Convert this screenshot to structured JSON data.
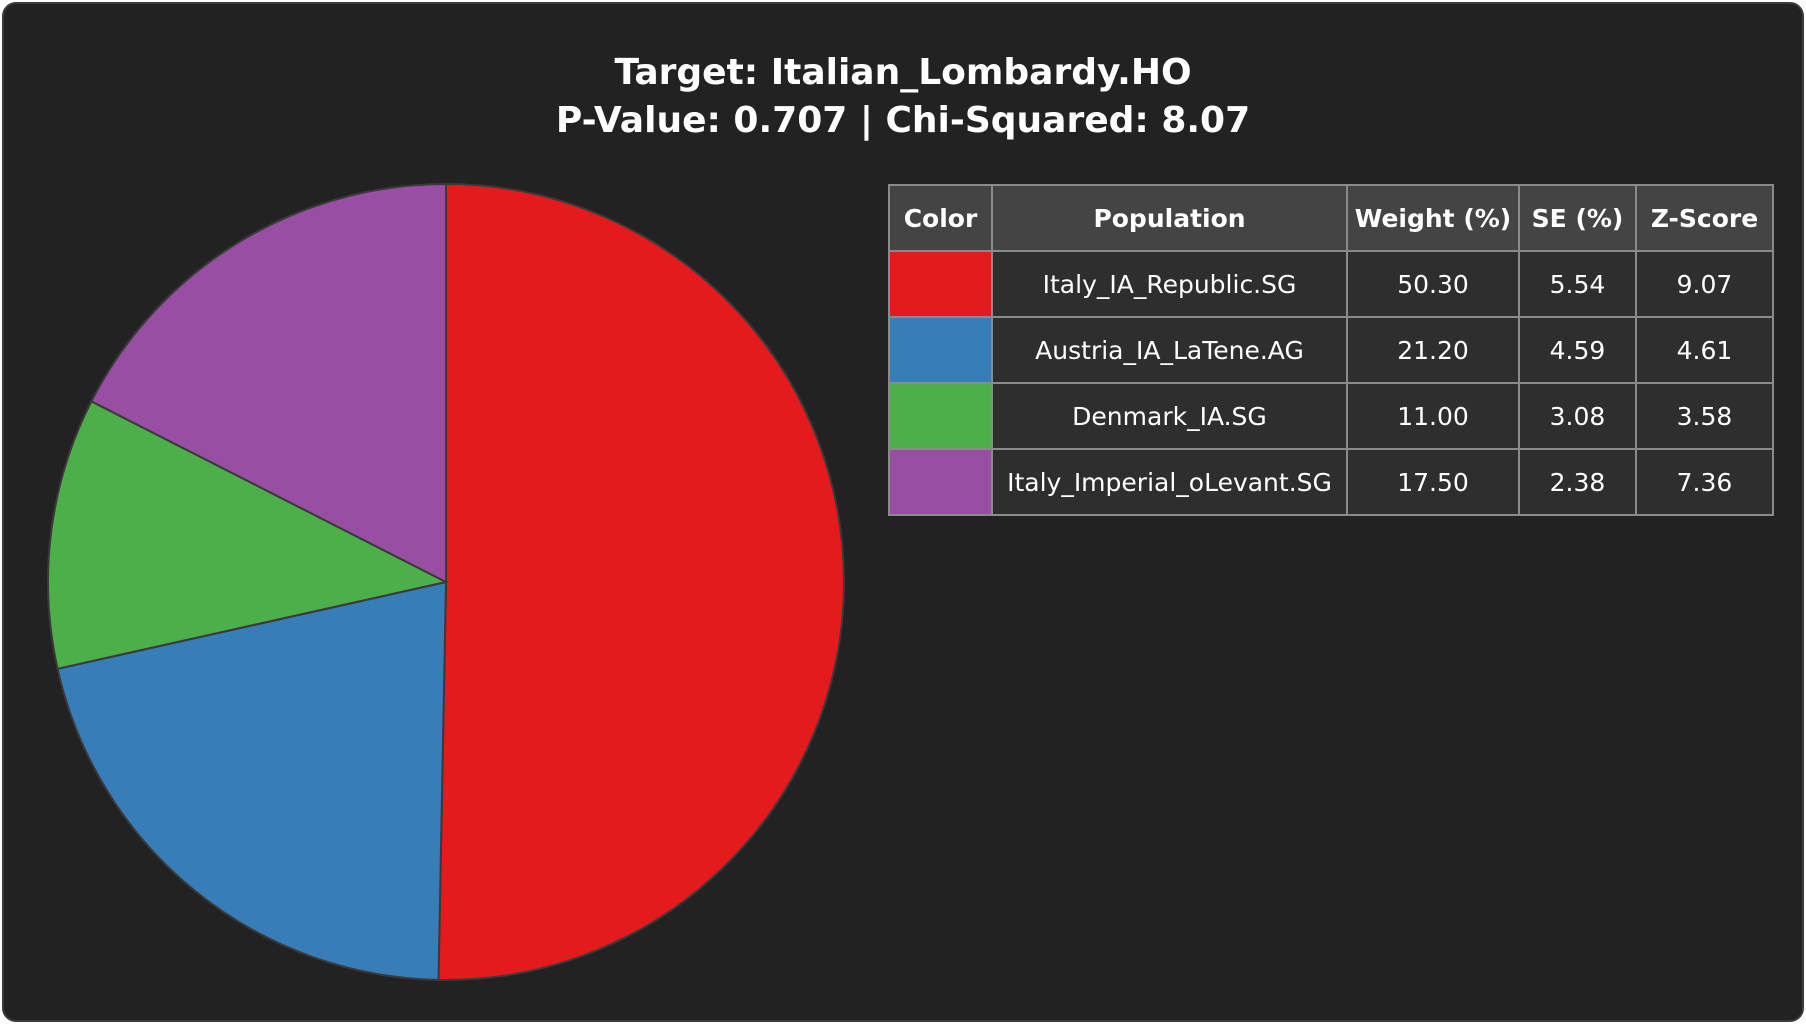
{
  "chart_data": {
    "type": "pie",
    "title": "Target: Italian_Lombardy.HO",
    "subtitle": "P-Value: 0.707 | Chi-Squared: 8.07",
    "columns": [
      "Color",
      "Population",
      "Weight (%)",
      "SE (%)",
      "Z-Score"
    ],
    "categories": [
      "Italy_IA_Republic.SG",
      "Austria_IA_LaTene.AG",
      "Denmark_IA.SG",
      "Italy_Imperial_oLevant.SG"
    ],
    "values": [
      50.3,
      21.2,
      11.0,
      17.5
    ],
    "value_labels": [
      "50.30",
      "21.20",
      "11.00",
      "17.50"
    ],
    "se": [
      5.54,
      4.59,
      3.08,
      2.38
    ],
    "z_scores": [
      9.07,
      4.61,
      3.58,
      7.36
    ],
    "colors": [
      "#e41a1c",
      "#377eb8",
      "#4daf4a",
      "#984ea3"
    ]
  }
}
